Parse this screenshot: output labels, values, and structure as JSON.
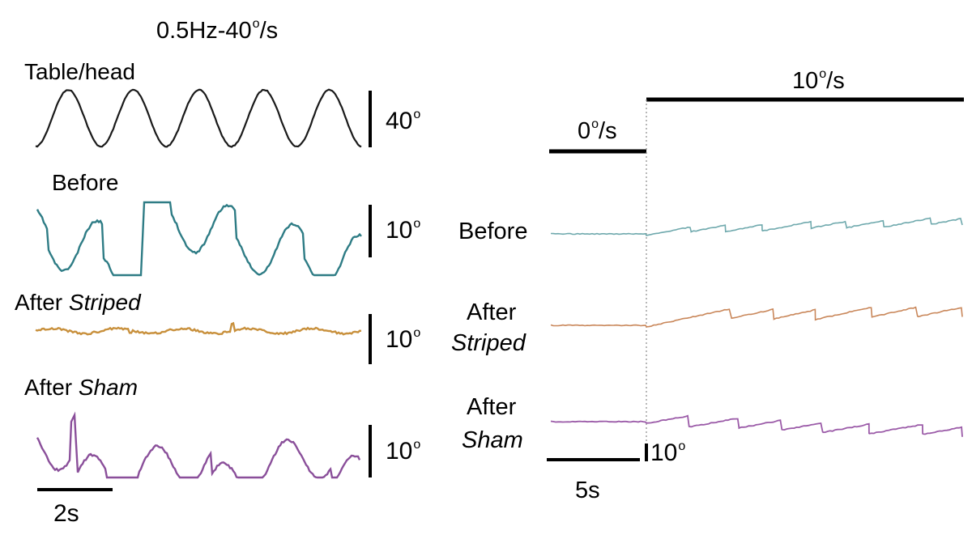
{
  "chart_data": [
    {
      "type": "line",
      "panel": "left",
      "title": "0.5Hz-40o/s",
      "stimulus": {
        "frequency_hz": 0.5,
        "peak_velocity": "40o/s"
      },
      "time_scale_bar": {
        "label": "2s",
        "seconds": 2
      },
      "series": [
        {
          "name": "Table/head",
          "name_prefix": "Table/head",
          "name_italic": "",
          "color": "#1a1a1a",
          "scale_label": "40o",
          "scale_deg": 40,
          "kind": "sine",
          "amplitude_deg": 20,
          "cycles": 5
        },
        {
          "name": "Before",
          "name_prefix": "Before",
          "name_italic": "",
          "color": "#2e7c85",
          "scale_label": "10o",
          "scale_deg": 10,
          "kind": "eye_sinusoid_with_saccades",
          "amplitude_deg": 4.5
        },
        {
          "name": "After Striped",
          "name_prefix": "After ",
          "name_italic": "Striped",
          "color": "#c8903c",
          "scale_label": "10o",
          "scale_deg": 10,
          "kind": "eye_flat",
          "amplitude_deg": 0.5
        },
        {
          "name": "After Sham",
          "name_prefix": "After ",
          "name_italic": "Sham",
          "color": "#8a4f9a",
          "scale_label": "10o",
          "scale_deg": 10,
          "kind": "eye_sinusoid_with_saccades",
          "amplitude_deg": 4
        }
      ]
    },
    {
      "type": "line",
      "panel": "right",
      "stimulus_trace": {
        "before_label": "0o/s",
        "after_label": "10o/s",
        "before_velocity": 0,
        "after_velocity": 10
      },
      "time_scale_bar": {
        "label": "5s",
        "seconds": 5
      },
      "amplitude_scale_bar": {
        "label": "10o",
        "deg": 10
      },
      "series": [
        {
          "name": "Before",
          "line1": "Before",
          "line2": "",
          "color": "#6fa9ad",
          "kind": "optokinetic_nystagmus",
          "beats_after_onset": 9
        },
        {
          "name": "After Striped",
          "line1": "After",
          "line2": "Striped",
          "color": "#c9875a",
          "kind": "optokinetic_nystagmus",
          "beats_after_onset": 6
        },
        {
          "name": "After Sham",
          "line1": "After",
          "line2": "Sham",
          "color": "#9b5ba8",
          "kind": "optokinetic_nystagmus",
          "beats_after_onset": 7
        }
      ]
    }
  ]
}
